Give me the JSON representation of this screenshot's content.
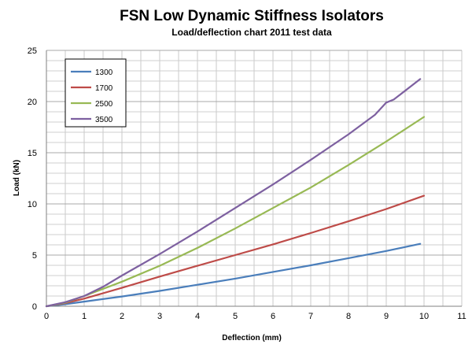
{
  "chart_data": {
    "type": "line",
    "title": "FSN Low Dynamic Stiffness Isolators",
    "subtitle": "Load/deflection chart 2011 test data",
    "xlabel": "Deflection (mm)",
    "ylabel": "Load (kN)",
    "xlim": [
      0,
      11
    ],
    "ylim": [
      0,
      25
    ],
    "xticks": [
      "0",
      "1",
      "2",
      "3",
      "4",
      "5",
      "6",
      "7",
      "8",
      "9",
      "10",
      "11"
    ],
    "yticks": [
      "0",
      "5",
      "10",
      "15",
      "20",
      "25"
    ],
    "grid": true,
    "legend_position": "top-left",
    "series": [
      {
        "name": "1300",
        "color": "#4a7ebb",
        "x": [
          0,
          0.5,
          1,
          2,
          3,
          4,
          5,
          6,
          7,
          8,
          9,
          9.9
        ],
        "y": [
          0,
          0.2,
          0.45,
          0.95,
          1.5,
          2.1,
          2.7,
          3.35,
          4.0,
          4.7,
          5.4,
          6.1
        ]
      },
      {
        "name": "1700",
        "color": "#be4b48",
        "x": [
          0,
          0.5,
          1,
          2,
          3,
          4,
          5,
          6,
          7,
          8,
          9,
          10
        ],
        "y": [
          0,
          0.3,
          0.75,
          1.8,
          2.9,
          3.95,
          5.0,
          6.05,
          7.15,
          8.3,
          9.5,
          10.8
        ]
      },
      {
        "name": "2500",
        "color": "#98b954",
        "x": [
          0,
          0.5,
          1,
          2,
          3,
          4,
          5,
          6,
          7,
          8,
          9,
          10
        ],
        "y": [
          0,
          0.35,
          1.0,
          2.4,
          3.95,
          5.7,
          7.6,
          9.6,
          11.6,
          13.8,
          16.1,
          18.5
        ]
      },
      {
        "name": "3500",
        "color": "#7d60a0",
        "x": [
          0,
          0.5,
          1,
          1.5,
          2,
          3,
          4,
          5,
          6,
          7,
          8,
          8.7,
          9,
          9.2,
          9.9
        ],
        "y": [
          0,
          0.4,
          1.0,
          1.9,
          3.0,
          5.1,
          7.3,
          9.6,
          11.9,
          14.3,
          16.8,
          18.7,
          19.9,
          20.2,
          22.2
        ]
      }
    ]
  }
}
